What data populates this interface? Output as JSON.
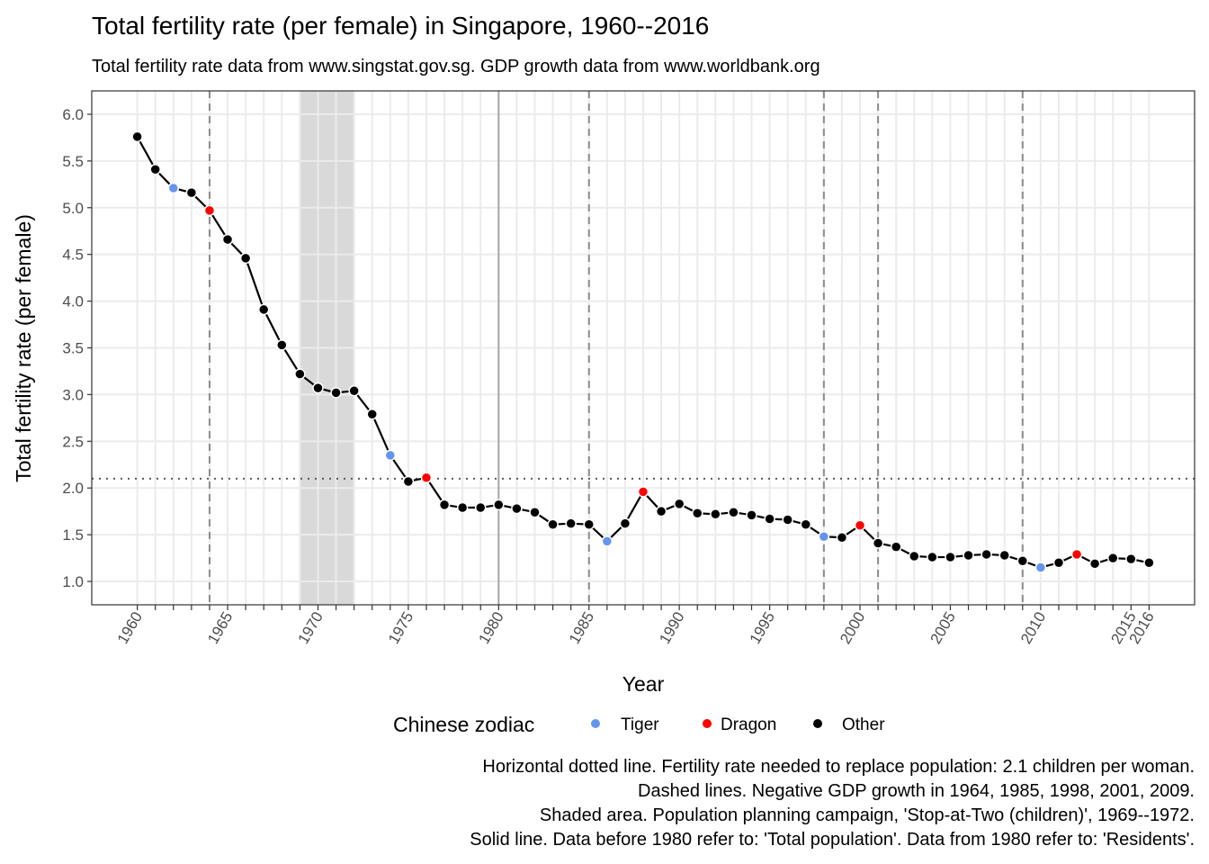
{
  "chart_data": {
    "type": "line",
    "title": "Total fertility rate (per female) in Singapore, 1960--2016",
    "subtitle": "Total fertility rate data from www.singstat.gov.sg. GDP growth data from www.worldbank.org",
    "xlabel": "Year",
    "ylabel": "Total fertility rate (per female)",
    "xlim": [
      1959.25,
      1977.25
    ],
    "ylim": [
      0.75,
      6.25
    ],
    "y_ticks": [
      "1.0",
      "1.5",
      "2.0",
      "2.5",
      "3.0",
      "3.5",
      "4.0",
      "4.5",
      "5.0",
      "5.5",
      "6.0"
    ],
    "x_tick_labels": [
      "1960",
      "1965",
      "1970",
      "1975",
      "1980",
      "1985",
      "1990",
      "1995",
      "2000",
      "2005",
      "2010",
      "2015",
      "2016"
    ],
    "grid": true,
    "legend": {
      "title": "Chinese zodiac",
      "position": "bottom",
      "items": [
        {
          "label": "Tiger",
          "color": "#6495ed"
        },
        {
          "label": "Dragon",
          "color": "#ff0000"
        },
        {
          "label": "Other",
          "color": "#000000"
        }
      ]
    },
    "points": [
      {
        "year": 1960,
        "value": 5.76,
        "zodiac": "Other"
      },
      {
        "year": 1961,
        "value": 5.41,
        "zodiac": "Other"
      },
      {
        "year": 1962,
        "value": 5.21,
        "zodiac": "Tiger"
      },
      {
        "year": 1963,
        "value": 5.16,
        "zodiac": "Other"
      },
      {
        "year": 1964,
        "value": 4.97,
        "zodiac": "Dragon"
      },
      {
        "year": 1965,
        "value": 4.66,
        "zodiac": "Other"
      },
      {
        "year": 1966,
        "value": 4.46,
        "zodiac": "Other"
      },
      {
        "year": 1967,
        "value": 3.91,
        "zodiac": "Other"
      },
      {
        "year": 1968,
        "value": 3.53,
        "zodiac": "Other"
      },
      {
        "year": 1969,
        "value": 3.22,
        "zodiac": "Other"
      },
      {
        "year": 1970,
        "value": 3.07,
        "zodiac": "Other"
      },
      {
        "year": 1971,
        "value": 3.02,
        "zodiac": "Other"
      },
      {
        "year": 1972,
        "value": 3.04,
        "zodiac": "Other"
      },
      {
        "year": 1973,
        "value": 2.79,
        "zodiac": "Other"
      },
      {
        "year": 1974,
        "value": 2.35,
        "zodiac": "Tiger"
      },
      {
        "year": 1975,
        "value": 2.07,
        "zodiac": "Other"
      },
      {
        "year": 1976,
        "value": 2.11,
        "zodiac": "Dragon"
      },
      {
        "year": 1977,
        "value": 1.82,
        "zodiac": "Other"
      },
      {
        "year": 1978,
        "value": 1.79,
        "zodiac": "Other"
      },
      {
        "year": 1979,
        "value": 1.79,
        "zodiac": "Other"
      },
      {
        "year": 1980,
        "value": 1.82,
        "zodiac": "Other"
      },
      {
        "year": 1981,
        "value": 1.78,
        "zodiac": "Other"
      },
      {
        "year": 1982,
        "value": 1.74,
        "zodiac": "Other"
      },
      {
        "year": 1983,
        "value": 1.61,
        "zodiac": "Other"
      },
      {
        "year": 1984,
        "value": 1.62,
        "zodiac": "Other"
      },
      {
        "year": 1985,
        "value": 1.61,
        "zodiac": "Other"
      },
      {
        "year": 1986,
        "value": 1.43,
        "zodiac": "Tiger"
      },
      {
        "year": 1987,
        "value": 1.62,
        "zodiac": "Other"
      },
      {
        "year": 1988,
        "value": 1.96,
        "zodiac": "Dragon"
      },
      {
        "year": 1989,
        "value": 1.75,
        "zodiac": "Other"
      },
      {
        "year": 1990,
        "value": 1.83,
        "zodiac": "Other"
      },
      {
        "year": 1991,
        "value": 1.73,
        "zodiac": "Other"
      },
      {
        "year": 1992,
        "value": 1.72,
        "zodiac": "Other"
      },
      {
        "year": 1993,
        "value": 1.74,
        "zodiac": "Other"
      },
      {
        "year": 1994,
        "value": 1.71,
        "zodiac": "Other"
      },
      {
        "year": 1995,
        "value": 1.67,
        "zodiac": "Other"
      },
      {
        "year": 1996,
        "value": 1.66,
        "zodiac": "Other"
      },
      {
        "year": 1997,
        "value": 1.61,
        "zodiac": "Other"
      },
      {
        "year": 1998,
        "value": 1.48,
        "zodiac": "Tiger"
      },
      {
        "year": 1999,
        "value": 1.47,
        "zodiac": "Other"
      },
      {
        "year": 2000,
        "value": 1.6,
        "zodiac": "Dragon"
      },
      {
        "year": 2001,
        "value": 1.41,
        "zodiac": "Other"
      },
      {
        "year": 2002,
        "value": 1.37,
        "zodiac": "Other"
      },
      {
        "year": 2003,
        "value": 1.27,
        "zodiac": "Other"
      },
      {
        "year": 2004,
        "value": 1.26,
        "zodiac": "Other"
      },
      {
        "year": 2005,
        "value": 1.26,
        "zodiac": "Other"
      },
      {
        "year": 2006,
        "value": 1.28,
        "zodiac": "Other"
      },
      {
        "year": 2007,
        "value": 1.29,
        "zodiac": "Other"
      },
      {
        "year": 2008,
        "value": 1.28,
        "zodiac": "Other"
      },
      {
        "year": 2009,
        "value": 1.22,
        "zodiac": "Other"
      },
      {
        "year": 2010,
        "value": 1.15,
        "zodiac": "Tiger"
      },
      {
        "year": 2011,
        "value": 1.2,
        "zodiac": "Other"
      },
      {
        "year": 2012,
        "value": 1.29,
        "zodiac": "Dragon"
      },
      {
        "year": 2013,
        "value": 1.19,
        "zodiac": "Other"
      },
      {
        "year": 2014,
        "value": 1.25,
        "zodiac": "Other"
      },
      {
        "year": 2015,
        "value": 1.24,
        "zodiac": "Other"
      },
      {
        "year": 2016,
        "value": 1.2,
        "zodiac": "Other"
      }
    ],
    "reference_lines": {
      "replacement_level": 2.1,
      "negative_gdp_years": [
        1964,
        1985,
        1998,
        2001,
        2009
      ],
      "campaign_period": [
        1969,
        1972
      ],
      "population_definition_change_year": 1980
    },
    "caption": [
      "Horizontal dotted line. Fertility rate needed to replace population: 2.1 children per woman.",
      "Dashed lines. Negative GDP growth in 1964, 1985, 1998, 2001, 2009.",
      "Shaded area. Population planning campaign, 'Stop-at-Two (children)', 1969--1972.",
      "Solid line. Data before 1980 refer to: 'Total population'. Data from 1980 refer to: 'Residents'."
    ]
  }
}
